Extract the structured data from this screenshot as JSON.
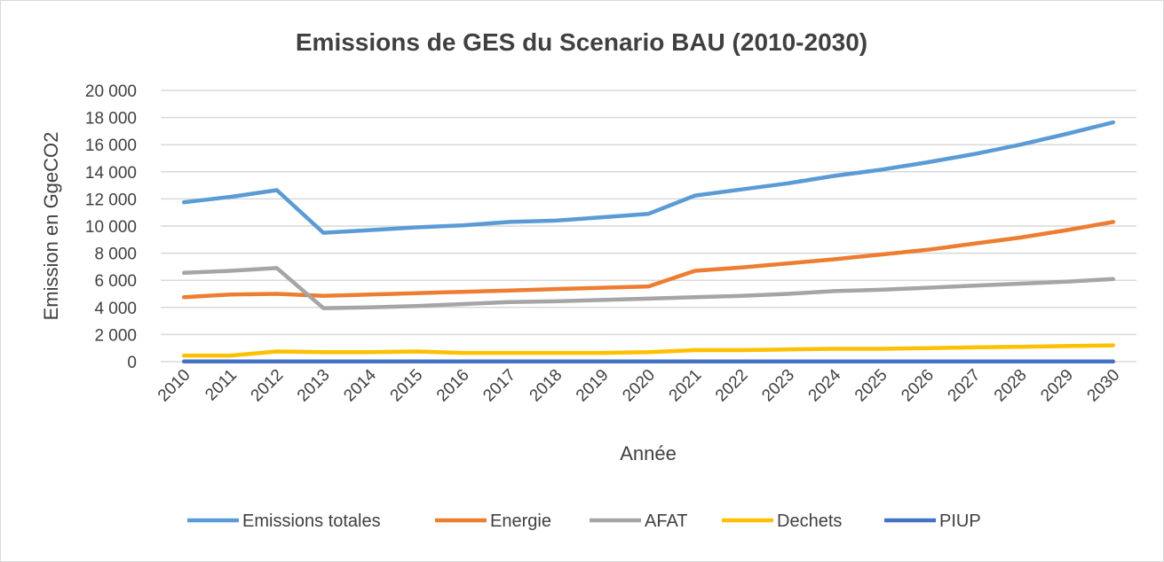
{
  "chart_data": {
    "type": "line",
    "title": "Emissions de GES du Scenario BAU (2010-2030)",
    "xlabel": "Année",
    "ylabel": "Emission en GgeCO2",
    "ylim": [
      0,
      20000
    ],
    "yticks": [
      0,
      2000,
      4000,
      6000,
      8000,
      10000,
      12000,
      14000,
      16000,
      18000,
      20000
    ],
    "ytick_labels": [
      "0",
      "2 000",
      "4 000",
      "6 000",
      "8 000",
      "10 000",
      "12 000",
      "14 000",
      "16 000",
      "18 000",
      "20 000"
    ],
    "grid": true,
    "legend_position": "bottom",
    "categories": [
      "2010",
      "2011",
      "2012",
      "2013",
      "2014",
      "2015",
      "2016",
      "2017",
      "2018",
      "2019",
      "2020",
      "2021",
      "2022",
      "2023",
      "2024",
      "2025",
      "2026",
      "2027",
      "2028",
      "2029",
      "2030"
    ],
    "series": [
      {
        "name": "Emissions totales",
        "color": "#5b9bd5",
        "values": [
          11750,
          12150,
          12650,
          9500,
          9700,
          9900,
          10050,
          10300,
          10400,
          10650,
          10900,
          12250,
          12700,
          13150,
          13700,
          14150,
          14700,
          15300,
          16000,
          16800,
          17650
        ]
      },
      {
        "name": "Energie",
        "color": "#ed7d31",
        "values": [
          4750,
          4950,
          5000,
          4850,
          4950,
          5050,
          5150,
          5250,
          5350,
          5450,
          5550,
          6700,
          6950,
          7250,
          7550,
          7900,
          8250,
          8700,
          9150,
          9700,
          10300
        ]
      },
      {
        "name": "AFAT",
        "color": "#a5a5a5",
        "values": [
          6550,
          6700,
          6900,
          3950,
          4000,
          4100,
          4250,
          4400,
          4450,
          4550,
          4650,
          4750,
          4850,
          5000,
          5200,
          5300,
          5450,
          5600,
          5750,
          5900,
          6100
        ]
      },
      {
        "name": "Dechets",
        "color": "#ffc000",
        "values": [
          450,
          450,
          750,
          700,
          700,
          750,
          650,
          650,
          650,
          650,
          700,
          850,
          850,
          900,
          950,
          950,
          1000,
          1050,
          1100,
          1150,
          1200
        ]
      },
      {
        "name": "PIUP",
        "color": "#4472c4",
        "values": [
          10,
          10,
          10,
          10,
          10,
          10,
          10,
          10,
          10,
          10,
          10,
          10,
          10,
          10,
          10,
          10,
          10,
          10,
          10,
          10,
          10
        ]
      }
    ]
  }
}
